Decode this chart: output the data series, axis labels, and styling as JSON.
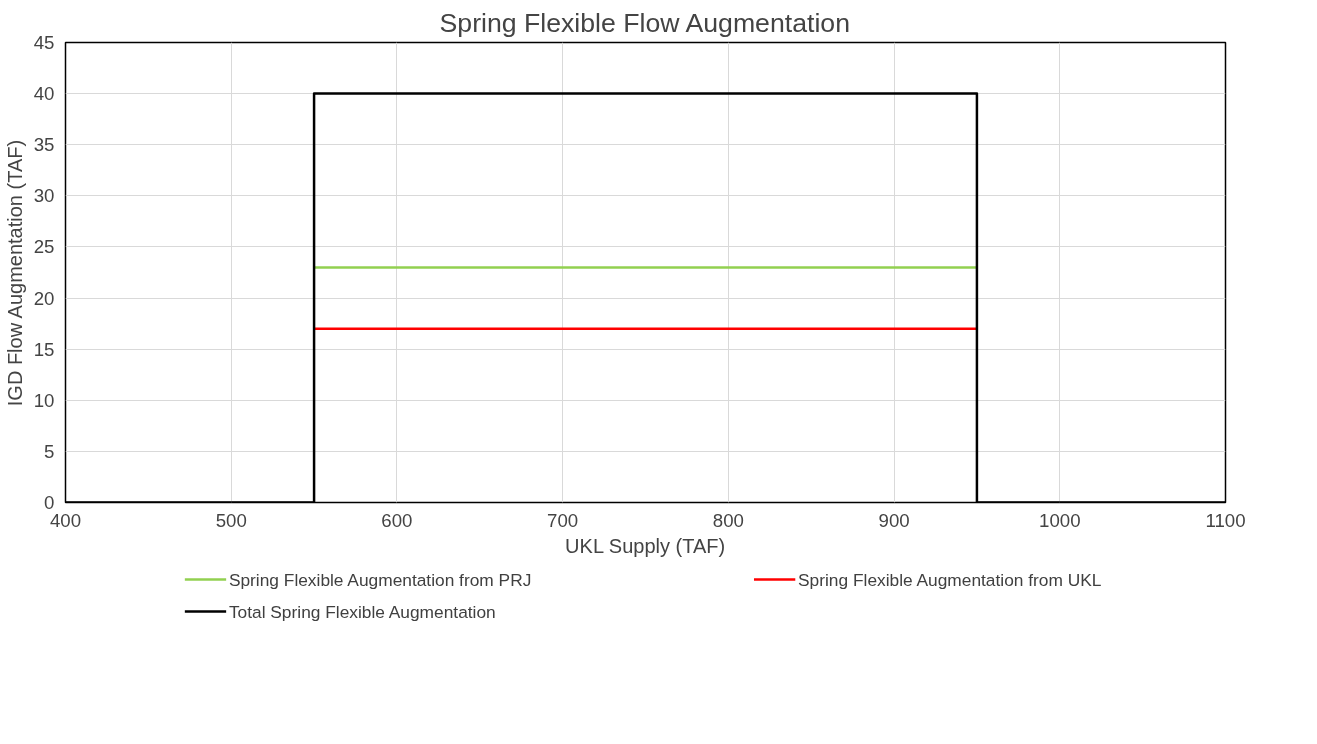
{
  "chart_data": {
    "type": "line",
    "title": "Spring Flexible Flow Augmentation",
    "xlabel": "UKL Supply (TAF)",
    "ylabel": "IGD Flow Augmentation (TAF)",
    "series": [
      {
        "name": "Spring Flexible Augmentation from PRJ",
        "color": "#92d050",
        "x": [
          550,
          950
        ],
        "values": [
          23,
          23
        ]
      },
      {
        "name": "Spring Flexible Augmentation from UKL",
        "color": "#ff0000",
        "x": [
          550,
          950
        ],
        "values": [
          17,
          17
        ]
      },
      {
        "name": "Total Spring Flexible Augmentation",
        "color": "#000000",
        "x": [
          400,
          550,
          550,
          950,
          950,
          1100
        ],
        "values": [
          0,
          0,
          40,
          40,
          0,
          0
        ]
      }
    ],
    "xlim": [
      400,
      1100
    ],
    "xticks": [
      400,
      500,
      600,
      700,
      800,
      900,
      1000,
      1100
    ],
    "ylim": [
      0,
      45
    ],
    "yticks": [
      0,
      5,
      10,
      15,
      20,
      25,
      30,
      35,
      40,
      45
    ],
    "grid": true,
    "legend": "bottom",
    "marker": "none",
    "line_style": "solid"
  }
}
